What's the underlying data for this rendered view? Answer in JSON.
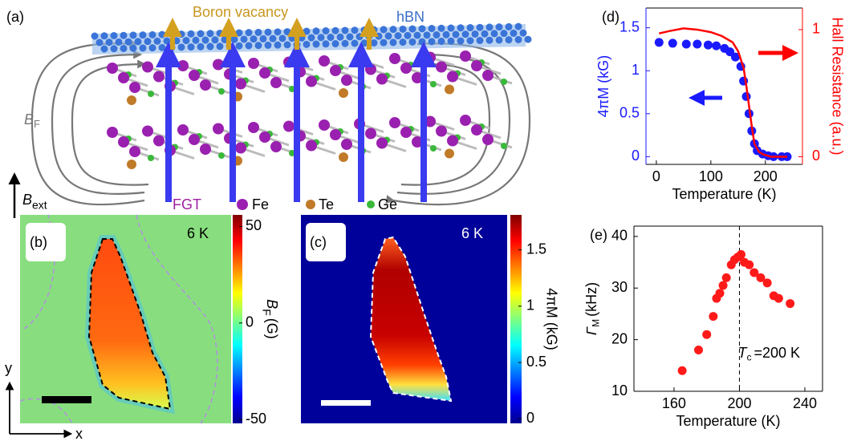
{
  "panel_a": {
    "label": "(a)",
    "boron_vacancy": "Boron vacancy",
    "hbn": "hBN",
    "field": {
      "symbol": "B",
      "subscript": "F"
    },
    "external_field": {
      "symbol": "B",
      "subscript": "ext"
    },
    "fgt": "FGT",
    "elements": [
      "Fe",
      "Te",
      "Ge"
    ]
  },
  "panel_b": {
    "label": "(b)",
    "temperature": "6 K",
    "colorbar": {
      "label": {
        "symbol": "B",
        "subscript": "F",
        "unit": "(G)"
      },
      "lim": [
        -52,
        56
      ],
      "ticks": [
        50,
        0,
        -50
      ]
    }
  },
  "panel_c": {
    "label": "(c)",
    "temperature": "6 K",
    "colorbar": {
      "label": "4πM (kG)",
      "lim": [
        -0.04,
        1.81
      ],
      "ticks": [
        0,
        0.5,
        1,
        1.5
      ]
    }
  },
  "axes": {
    "y": "y",
    "x": "x"
  },
  "chart_data": [
    {
      "type": "line",
      "panel_label": "(d)",
      "xlabel": "Temperature (K)",
      "ylabel": "4πM (kG)",
      "y2label": "Hall Resistance (a.u.)",
      "ylabel_color": "#1a1aff",
      "y2label_color": "#ff0000",
      "xlim": [
        -19,
        268
      ],
      "xticks": [
        0,
        100,
        200
      ],
      "ylim": [
        -0.09,
        1.73
      ],
      "yticks": [
        0,
        0.5,
        1,
        1.5
      ],
      "y2lim": [
        -0.06,
        1.17
      ],
      "y2ticks": [
        0,
        1
      ],
      "series": [
        {
          "mode": "markers",
          "color": "#1a1aff",
          "x": [
            5,
            30,
            55,
            75,
            95,
            110,
            125,
            135,
            145,
            155,
            160,
            165,
            170,
            175,
            180,
            185,
            195,
            205,
            215,
            230,
            240
          ],
          "values": [
            1.33,
            1.32,
            1.31,
            1.31,
            1.3,
            1.29,
            1.26,
            1.22,
            1.16,
            1.05,
            0.88,
            0.7,
            0.5,
            0.3,
            0.15,
            0.07,
            0.03,
            0.01,
            0,
            0,
            0
          ]
        },
        {
          "mode": "line",
          "color": "#ff0000",
          "axis": "y2",
          "x": [
            5,
            25,
            50,
            75,
            100,
            120,
            140,
            150,
            160,
            165,
            170,
            175,
            180,
            188,
            195,
            210,
            225,
            240
          ],
          "values": [
            0.97,
            0.99,
            1.01,
            1.0,
            0.98,
            0.95,
            0.9,
            0.83,
            0.7,
            0.56,
            0.4,
            0.24,
            0.1,
            0.04,
            0.02,
            0,
            0,
            0
          ]
        }
      ]
    },
    {
      "type": "scatter",
      "panel_label": "(e)",
      "xlabel": "Temperature (K)",
      "ylabel": {
        "symbol": "Γ",
        "subscript": "M",
        "unit": "(kHz)"
      },
      "xlim": [
        135.5,
        250.8
      ],
      "xticks": [
        160,
        200,
        240
      ],
      "ylim": [
        10,
        42
      ],
      "yticks": [
        10,
        20,
        30,
        40
      ],
      "vline": 200,
      "annotation": {
        "symbol": "T",
        "subscript": "c",
        "unit": "=200 K"
      },
      "series": [
        {
          "mode": "markers",
          "color": "#ff1a1a",
          "x": [
            165,
            175,
            180,
            184,
            186,
            188,
            190,
            192,
            195,
            197,
            199,
            201,
            203,
            206,
            209,
            213,
            217,
            221,
            224,
            231
          ],
          "values": [
            14,
            18,
            21,
            24.5,
            28,
            29,
            30.5,
            32,
            34.5,
            35.5,
            36,
            36.5,
            35,
            34.5,
            33,
            32,
            31,
            28.5,
            28,
            27
          ]
        }
      ]
    }
  ]
}
